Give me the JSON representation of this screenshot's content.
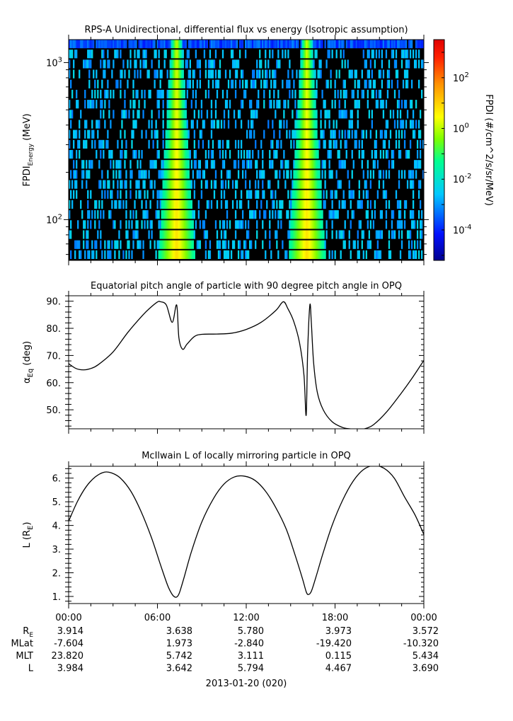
{
  "chart_data": [
    {
      "type": "heatmap",
      "title": "RPS-A Unidirectional, differential flux vs energy (Isotropic assumption)",
      "ylabel": "FPDI",
      "ylabel_sub": "Energy",
      "ylabel_unit": "(MeV)",
      "yscale": "log",
      "ylim": [
        55,
        1400
      ],
      "ytick_labels": [
        {
          "value": 100,
          "base": "10",
          "exp": "2"
        },
        {
          "value": 1000,
          "base": "10",
          "exp": "3"
        }
      ],
      "xlim_hours": [
        0,
        24
      ],
      "colorbar": {
        "label": "FPDI (#/cm^2/s/sr/MeV)",
        "scale": "log",
        "range_log10": [
          -5.2,
          3.5
        ],
        "tick_labels": [
          {
            "log10": 2,
            "base": "10",
            "exp": "2"
          },
          {
            "log10": 0,
            "base": "10",
            "exp": "0"
          },
          {
            "log10": -2,
            "base": "10",
            "exp": "-2"
          },
          {
            "log10": -4,
            "base": "10",
            "exp": "-4"
          }
        ]
      },
      "bright_bands_hours": [
        7.3,
        16.1
      ]
    },
    {
      "type": "line",
      "title": "Equatorial pitch angle of particle with 90 degree pitch angle in OPQ",
      "ylabel": "α",
      "ylabel_sub": "Eq",
      "ylabel_unit": "(deg)",
      "ylim": [
        43,
        92
      ],
      "yticks": [
        "90.",
        "80.",
        "70.",
        "60.",
        "50."
      ],
      "ytick_values": [
        90,
        80,
        70,
        60,
        50
      ],
      "x_hours": [
        0,
        0.5,
        1,
        1.5,
        2,
        3,
        4,
        5,
        5.5,
        6,
        6.2,
        6.6,
        7.0,
        7.3,
        7.45,
        7.7,
        8.0,
        8.5,
        9.0,
        10.0,
        11.0,
        12.0,
        13.0,
        14.0,
        14.5,
        14.8,
        15.2,
        15.6,
        15.9,
        16.05,
        16.15,
        16.3,
        16.4,
        16.55,
        16.8,
        17.2,
        17.8,
        18.5,
        19.0,
        19.6,
        20.0,
        20.6,
        21.5,
        22.5,
        23.2,
        24.0
      ],
      "y_deg": [
        67,
        65.2,
        64.7,
        65.2,
        66.6,
        71.3,
        78.5,
        84.8,
        87.5,
        89.7,
        89.8,
        88.6,
        82.2,
        88.6,
        76.5,
        72.3,
        74.2,
        77,
        77.8,
        77.9,
        78.2,
        79.6,
        82.2,
        86.6,
        89.8,
        87.4,
        82.7,
        74.7,
        62.8,
        48,
        71.6,
        88.6,
        82,
        67.5,
        56.5,
        50,
        45.6,
        43.5,
        43,
        42.8,
        43,
        44.5,
        49.3,
        56.3,
        61.6,
        68.2
      ],
      "xlim_hours": [
        0,
        24
      ]
    },
    {
      "type": "line",
      "title": "McIlwain L of locally mirroring particle in OPQ",
      "ylabel": "L (R",
      "ylabel_sub": "E",
      "ylabel_unit": ")",
      "ylim": [
        0.7,
        6.5
      ],
      "yticks": [
        "6.",
        "5.",
        "4.",
        "3.",
        "2.",
        "1."
      ],
      "ytick_values": [
        6,
        5,
        4,
        3,
        2,
        1
      ],
      "x_hours": [
        0,
        0.6,
        1.2,
        1.8,
        2.4,
        2.9,
        3.5,
        4.2,
        4.9,
        5.6,
        6.2,
        6.7,
        7.0,
        7.2,
        7.35,
        7.5,
        7.8,
        8.3,
        9.0,
        9.8,
        10.5,
        11.2,
        11.9,
        12.6,
        13.3,
        14.0,
        14.7,
        15.3,
        15.8,
        16.05,
        16.2,
        16.4,
        16.7,
        17.2,
        17.8,
        18.5,
        19.2,
        19.9,
        20.6,
        21.3,
        22.0,
        22.7,
        23.4,
        24.0
      ],
      "y_L": [
        4.18,
        5.02,
        5.65,
        6.05,
        6.25,
        6.22,
        6.0,
        5.45,
        4.58,
        3.48,
        2.35,
        1.45,
        1.08,
        0.97,
        1.0,
        1.18,
        1.8,
        2.9,
        4.15,
        5.15,
        5.75,
        6.05,
        6.08,
        5.9,
        5.45,
        4.75,
        3.85,
        2.75,
        1.75,
        1.2,
        1.08,
        1.22,
        1.8,
        2.85,
        4.0,
        5.05,
        5.85,
        6.35,
        6.53,
        6.42,
        6.0,
        5.2,
        4.45,
        3.62
      ],
      "xlim_hours": [
        0,
        24
      ]
    }
  ],
  "xaxis": {
    "tick_labels": [
      "00:00",
      "06:00",
      "12:00",
      "18:00",
      "00:00"
    ],
    "tick_hours": [
      0,
      6,
      12,
      18,
      24
    ],
    "date_label": "2013-01-20 (020)"
  },
  "ephemeris": {
    "rows": [
      {
        "label": "R",
        "sub": "E",
        "values": [
          "3.914",
          "3.638",
          "5.780",
          "3.973",
          "3.572"
        ]
      },
      {
        "label": "MLat",
        "sub": "",
        "values": [
          "-7.604",
          "1.973",
          "-2.840",
          "-19.420",
          "-10.320"
        ]
      },
      {
        "label": "MLT",
        "sub": "",
        "values": [
          "23.820",
          "5.742",
          "3.111",
          "0.115",
          "5.434"
        ]
      },
      {
        "label": "L",
        "sub": "",
        "values": [
          "3.984",
          "3.642",
          "5.794",
          "4.467",
          "3.690"
        ]
      }
    ]
  }
}
